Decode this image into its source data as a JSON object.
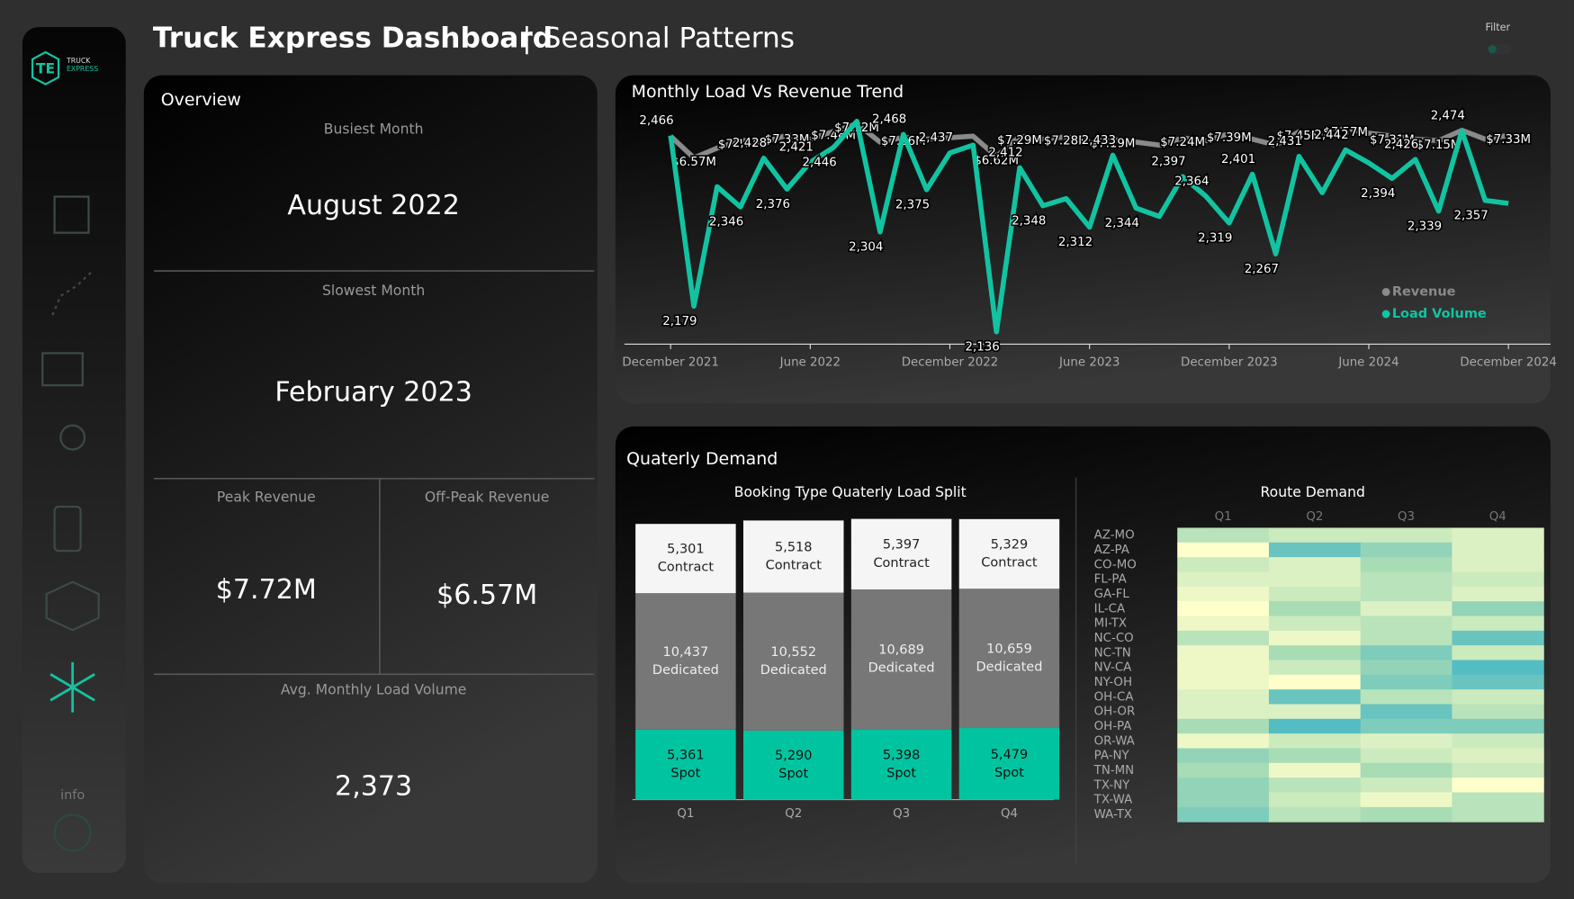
{
  "header": {
    "title": "Truck Express Dashboard",
    "subtitle": "Seasonal Patterns",
    "filter": "Filter"
  },
  "sidebar": {
    "logo": "TE",
    "brand": [
      "TRUCK",
      "EXPRESS"
    ],
    "info": "info"
  },
  "overview": {
    "title": "Overview",
    "cards": [
      {
        "label": "Busiest Month",
        "value": "August 2022"
      },
      {
        "label": "Slowest Month",
        "value": "February 2023"
      },
      {
        "label": "Peak Revenue",
        "value": "$7.72M"
      },
      {
        "label": "Off-Peak Revenue",
        "value": "$6.57M"
      },
      {
        "label": "Avg. Monthly Load Volume",
        "value": "2,373"
      }
    ]
  },
  "section_title": "Quaterly Demand",
  "chart_data": [
    {
      "type": "line",
      "title": "Monthly Load Vs Revenue Trend",
      "x": [
        "2021-12",
        "2022-01",
        "2022-02",
        "2022-03",
        "2022-04",
        "2022-05",
        "2022-06",
        "2022-07",
        "2022-08",
        "2022-09",
        "2022-10",
        "2022-11",
        "2022-12",
        "2023-01",
        "2023-02",
        "2023-03",
        "2023-04",
        "2023-05",
        "2023-06",
        "2023-07",
        "2023-08",
        "2023-09",
        "2023-10",
        "2023-11",
        "2023-12",
        "2024-01",
        "2024-02",
        "2024-03",
        "2024-04",
        "2024-05",
        "2024-06",
        "2024-07",
        "2024-08",
        "2024-09",
        "2024-10",
        "2024-11",
        "2024-12"
      ],
      "xticks": [
        {
          "value": "2021-12",
          "label": "December 2021"
        },
        {
          "value": "2022-06",
          "label": "June 2022"
        },
        {
          "value": "2022-12",
          "label": "December 2022"
        },
        {
          "value": "2023-06",
          "label": "June 2023"
        },
        {
          "value": "2023-12",
          "label": "December 2023"
        },
        {
          "value": "2024-06",
          "label": "June 2024"
        },
        {
          "value": "2024-12",
          "label": "December 2024"
        }
      ],
      "ylim": [
        2100,
        2500
      ],
      "y2lim": [
        0,
        8
      ],
      "legend": "bottom-right",
      "series": [
        {
          "name": "Revenue",
          "color": "#8a8a8a",
          "axis": "y2",
          "values": [
            7.3,
            6.57,
            6.9,
            7.16,
            7.1,
            7.33,
            7.2,
            7.46,
            7.72,
            7.1,
            7.26,
            7.2,
            7.25,
            7.3,
            6.62,
            7.29,
            7.2,
            7.28,
            7.1,
            7.19,
            7.1,
            7.0,
            7.24,
            7.15,
            7.39,
            7.2,
            7.0,
            7.45,
            7.3,
            7.57,
            7.4,
            7.31,
            7.2,
            7.15,
            7.5,
            7.2,
            7.33
          ],
          "value_labels": [
            null,
            "$6.57M",
            null,
            "$7.16M",
            null,
            "$7.33M",
            null,
            "$7.46M",
            "$7.72M",
            null,
            "$7.26M",
            null,
            null,
            null,
            "$6.62M",
            "$7.29M",
            null,
            "$7.28M",
            null,
            "$7.19M",
            null,
            null,
            "$7.24M",
            null,
            "$7.39M",
            null,
            null,
            "$7.45M",
            null,
            "$7.57M",
            null,
            "$7.31M",
            null,
            "$7.15M",
            null,
            null,
            "$7.33M"
          ]
        },
        {
          "name": "Load Volume",
          "color": "#12c3a1",
          "values": [
            2466,
            2179,
            2380,
            2346,
            2428,
            2376,
            2421,
            2446,
            2490,
            2304,
            2468,
            2375,
            2437,
            2450,
            2136,
            2412,
            2348,
            2360,
            2312,
            2433,
            2344,
            2330,
            2397,
            2364,
            2319,
            2401,
            2267,
            2431,
            2370,
            2442,
            2420,
            2394,
            2426,
            2339,
            2474,
            2357,
            2352
          ],
          "value_labels": [
            "2,466",
            "2,179",
            null,
            "2,346",
            "2,428",
            "2,376",
            "2,421",
            "2,446",
            null,
            "2,304",
            "2,468",
            "2,375",
            "2,437",
            null,
            "2,136",
            "2,412",
            "2,348",
            null,
            "2,312",
            "2,433",
            "2,344",
            null,
            "2,397",
            "2,364",
            "2,319",
            "2,401",
            "2,267",
            "2,431",
            null,
            "2,442",
            null,
            "2,394",
            "2,426",
            "2,339",
            "2,474",
            "2,357",
            null
          ]
        }
      ]
    },
    {
      "type": "stacked-bar",
      "title": "Booking Type Quaterly Load Split",
      "categories": [
        "Q1",
        "Q2",
        "Q3",
        "Q4"
      ],
      "ylim": [
        0,
        22800
      ],
      "series": [
        {
          "name": "Spot",
          "color": "#00c4a0",
          "values": [
            5361,
            5290,
            5398,
            5479
          ],
          "value_labels": [
            "5,361",
            "5,290",
            "5,398",
            "5,479"
          ]
        },
        {
          "name": "Dedicated",
          "color": "#777777",
          "values": [
            10437,
            10552,
            10689,
            10659
          ],
          "value_labels": [
            "10,437",
            "10,552",
            "10,689",
            "10,659"
          ]
        },
        {
          "name": "Contract",
          "color": "#f5f5f5",
          "values": [
            5301,
            5518,
            5397,
            5329
          ],
          "value_labels": [
            "5,301",
            "5,518",
            "5,397",
            "5,329"
          ]
        }
      ]
    },
    {
      "type": "heatmap",
      "title": "Route Demand",
      "columns": [
        "Q1",
        "Q2",
        "Q3",
        "Q4"
      ],
      "rows": [
        "AZ-MO",
        "AZ-PA",
        "CO-MO",
        "FL-PA",
        "GA-FL",
        "IL-CA",
        "MI-TX",
        "NC-CO",
        "NC-TN",
        "NV-CA",
        "NY-OH",
        "OH-CA",
        "OH-OR",
        "OH-PA",
        "OR-WA",
        "PA-NY",
        "TN-MN",
        "TX-NY",
        "TX-WA",
        "WA-TX"
      ],
      "zlim": [
        0,
        10
      ],
      "colors": [
        "#ffffcc",
        "#a8dcb5",
        "#3fb4c6"
      ],
      "values": [
        [
          4,
          3,
          3,
          2
        ],
        [
          0,
          8,
          6,
          2
        ],
        [
          3,
          2,
          5,
          2
        ],
        [
          2,
          2,
          4,
          3
        ],
        [
          1,
          3,
          4,
          2
        ],
        [
          0,
          5,
          2,
          6
        ],
        [
          1,
          3,
          4,
          3
        ],
        [
          4,
          1,
          4,
          8
        ],
        [
          1,
          5,
          7,
          3
        ],
        [
          1,
          3,
          6,
          9
        ],
        [
          1,
          0,
          7,
          8
        ],
        [
          2,
          8,
          4,
          3
        ],
        [
          2,
          2,
          8,
          4
        ],
        [
          5,
          9,
          7,
          7
        ],
        [
          1,
          3,
          2,
          3
        ],
        [
          6,
          5,
          3,
          2
        ],
        [
          5,
          1,
          5,
          3
        ],
        [
          6,
          4,
          3,
          0
        ],
        [
          6,
          3,
          1,
          4
        ],
        [
          7,
          4,
          5,
          4
        ]
      ]
    }
  ]
}
